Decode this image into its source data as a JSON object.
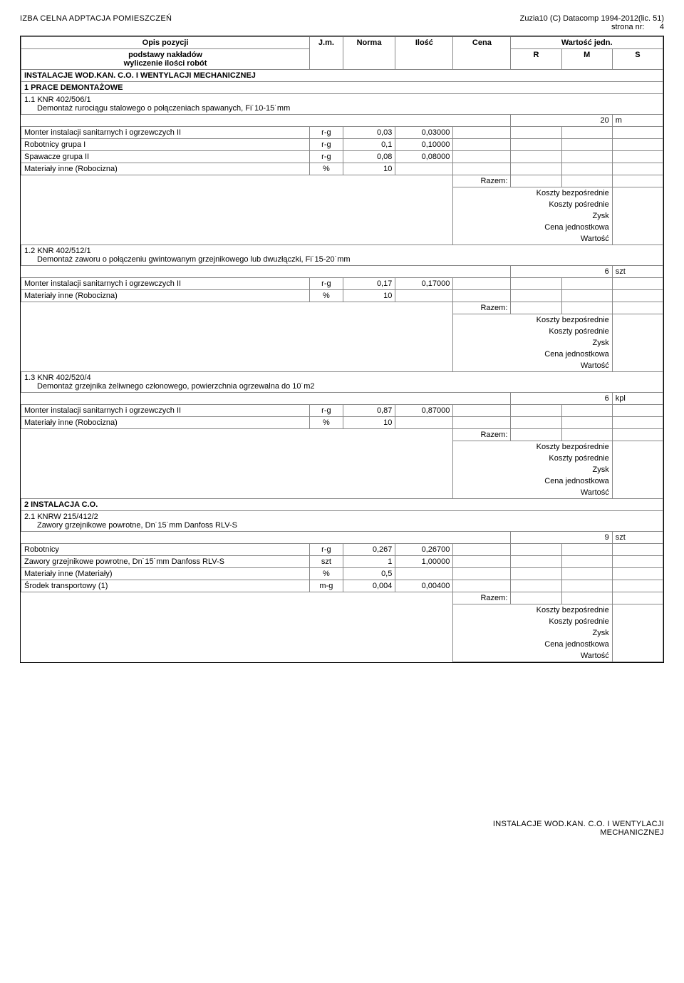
{
  "header": {
    "left": "IZBA CELNA ADPTACJA POMIESZCZEŃ",
    "right_line1": "Zuzia10 (C) Datacomp 1994-2012(lic. 51)",
    "right_line2_label": "strona nr:",
    "right_line2_val": "4"
  },
  "thead": {
    "opis_l1": "Opis pozycji",
    "opis_l2": "podstawy nakładów",
    "opis_l3": "wyliczenie ilości robót",
    "jm": "J.m.",
    "norma": "Norma",
    "ilosc": "Ilość",
    "cena": "Cena",
    "wart_jedn": "Wartość jedn.",
    "R": "R",
    "M": "M",
    "S": "S"
  },
  "titles": {
    "main": "INSTALACJE WOD.KAN. C.O. I WENTYLACJI MECHANICZNEJ",
    "s1": "1  PRACE DEMONTAŻOWE",
    "s2": "2  INSTALACJA C.O."
  },
  "items": {
    "i11": {
      "code": "1.1  KNR 402/506/1",
      "desc": "Demontaż rurociągu stalowego o połączeniach spawanych, Fi˙10-15˙mm",
      "qty": "20",
      "unit": "m",
      "rows": [
        {
          "name": "Monter instalacji sanitarnych i ogrzewczych II",
          "jm": "r-g",
          "norma": "0,03",
          "ilosc": "0,03000"
        },
        {
          "name": "Robotnicy grupa I",
          "jm": "r-g",
          "norma": "0,1",
          "ilosc": "0,10000"
        },
        {
          "name": "Spawacze grupa II",
          "jm": "r-g",
          "norma": "0,08",
          "ilosc": "0,08000"
        },
        {
          "name": "Materiały inne (Robocizna)",
          "jm": "%",
          "norma": "10",
          "ilosc": ""
        }
      ]
    },
    "i12": {
      "code": "1.2  KNR 402/512/1",
      "desc": "Demontaż zaworu o połączeniu gwintowanym grzejnikowego lub dwuzłączki, Fi˙15-20˙mm",
      "qty": "6",
      "unit": "szt",
      "rows": [
        {
          "name": "Monter instalacji sanitarnych i ogrzewczych II",
          "jm": "r-g",
          "norma": "0,17",
          "ilosc": "0,17000"
        },
        {
          "name": "Materiały inne (Robocizna)",
          "jm": "%",
          "norma": "10",
          "ilosc": ""
        }
      ]
    },
    "i13": {
      "code": "1.3  KNR 402/520/4",
      "desc": "Demontaż grzejnika żeliwnego członowego, powierzchnia ogrzewalna do 10˙m2",
      "qty": "6",
      "unit": "kpl",
      "rows": [
        {
          "name": "Monter instalacji sanitarnych i ogrzewczych II",
          "jm": "r-g",
          "norma": "0,87",
          "ilosc": "0,87000"
        },
        {
          "name": "Materiały inne (Robocizna)",
          "jm": "%",
          "norma": "10",
          "ilosc": ""
        }
      ]
    },
    "i21": {
      "code": "2.1  KNRW 215/412/2",
      "desc": "Zawory grzejnikowe powrotne, Dn˙15˙mm Danfoss RLV-S",
      "qty": "9",
      "unit": "szt",
      "rows": [
        {
          "name": "Robotnicy",
          "jm": "r-g",
          "norma": "0,267",
          "ilosc": "0,26700"
        },
        {
          "name": "Zawory grzejnikowe powrotne, Dn˙15˙mm Danfoss RLV-S",
          "jm": "szt",
          "norma": "1",
          "ilosc": "1,00000"
        },
        {
          "name": "Materiały inne (Materiały)",
          "jm": "%",
          "norma": "0,5",
          "ilosc": ""
        },
        {
          "name": "Środek transportowy (1)",
          "jm": "m-g",
          "norma": "0,004",
          "ilosc": "0,00400"
        }
      ]
    }
  },
  "summary": {
    "razem": "Razem:",
    "l1": "Koszty bezpośrednie",
    "l2": "Koszty pośrednie",
    "l3": "Zysk",
    "l4": "Cena jednostkowa",
    "l5": "Wartość"
  },
  "footer": {
    "l1": "INSTALACJE WOD.KAN. C.O. I WENTYLACJI",
    "l2": "MECHANICZNEJ"
  }
}
